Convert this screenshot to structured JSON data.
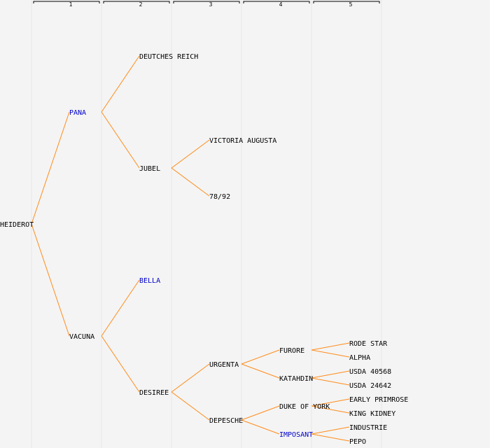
{
  "colors": {
    "background": "#f4f4f4",
    "edge": "#ff8c1a",
    "text_default": "#000000",
    "text_highlight": "#0000cc"
  },
  "generations": [
    "1",
    "2",
    "3",
    "4",
    "5"
  ],
  "tree": {
    "label": "HEIDEROT",
    "children": [
      {
        "label": "PANA",
        "highlight": true,
        "children": [
          {
            "label": "DEUTCHES REICH",
            "children": []
          },
          {
            "label": "JUBEL",
            "children": [
              {
                "label": "VICTORIA AUGUSTA",
                "children": []
              },
              {
                "label": "78/92",
                "children": []
              }
            ]
          }
        ]
      },
      {
        "label": "VACUNA",
        "children": [
          {
            "label": "BELLA",
            "highlight": true,
            "children": []
          },
          {
            "label": "DESIREE",
            "children": [
              {
                "label": "URGENTA",
                "children": [
                  {
                    "label": "FURORE",
                    "children": [
                      {
                        "label": "RODE STAR",
                        "children": []
                      },
                      {
                        "label": "ALPHA",
                        "children": []
                      }
                    ]
                  },
                  {
                    "label": "KATAHDIN",
                    "children": [
                      {
                        "label": "USDA 40568",
                        "children": []
                      },
                      {
                        "label": "USDA 24642",
                        "children": []
                      }
                    ]
                  }
                ]
              },
              {
                "label": "DEPESCHE",
                "children": [
                  {
                    "label": "DUKE OF YORK",
                    "children": [
                      {
                        "label": "EARLY PRIMROSE",
                        "children": []
                      },
                      {
                        "label": "KING KIDNEY",
                        "children": []
                      }
                    ]
                  },
                  {
                    "label": "IMPOSANT",
                    "highlight": true,
                    "children": [
                      {
                        "label": "INDUSTRIE",
                        "children": []
                      },
                      {
                        "label": "PEPO",
                        "children": []
                      }
                    ]
                  }
                ]
              }
            ]
          }
        ]
      }
    ]
  }
}
